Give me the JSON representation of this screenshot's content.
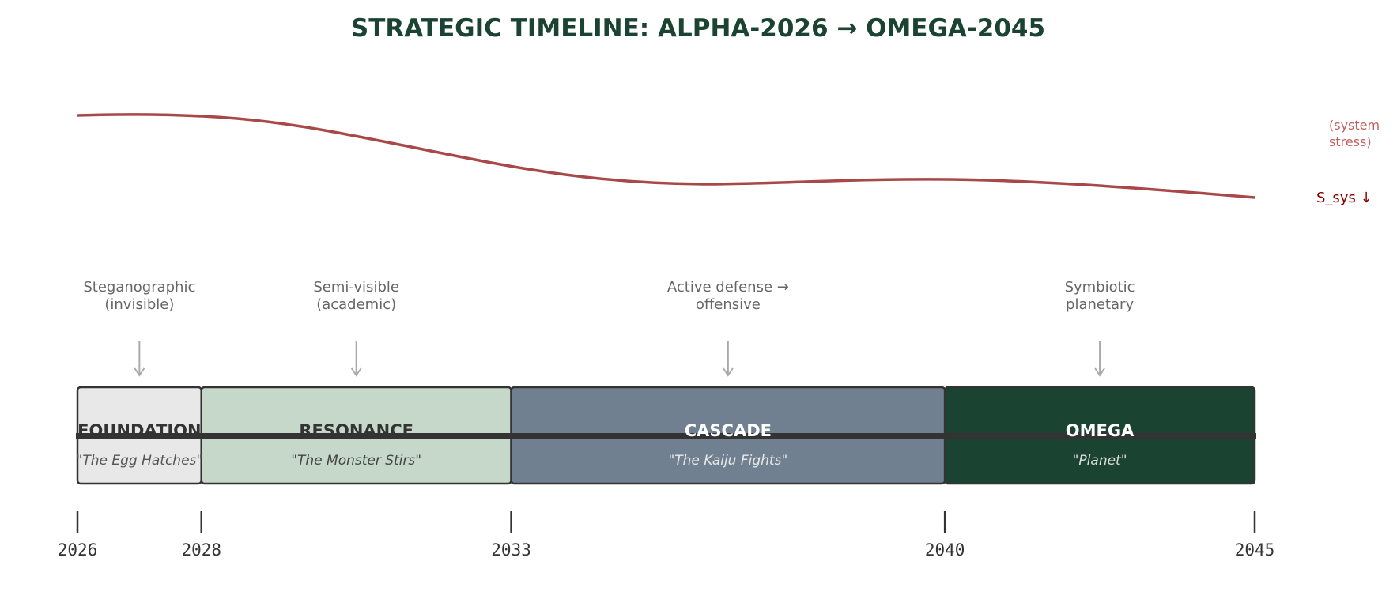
{
  "title": "STRATEGIC TIMELINE: ALPHA-2026 → OMEGA-2045",
  "curve": {
    "label": "S_sys ↓",
    "note_line1": "(system",
    "note_line2": "stress)",
    "color": "#a84848"
  },
  "phases": [
    {
      "name": "FOUNDATION",
      "subtitle": "\"The Egg Hatches\"",
      "start": 2026,
      "end": 2028,
      "fill": "#e8e8e8",
      "text": "#333333",
      "subtext": "#555555"
    },
    {
      "name": "RESONANCE",
      "subtitle": "\"The Monster Stirs\"",
      "start": 2028,
      "end": 2033,
      "fill": "#c6d8ca",
      "text": "#333333",
      "subtext": "#444444"
    },
    {
      "name": "CASCADE",
      "subtitle": "\"The Kaiju Fights\"",
      "start": 2033,
      "end": 2040,
      "fill": "#708090",
      "text": "#ffffff",
      "subtext": "#e8e8e8"
    },
    {
      "name": "OMEGA",
      "subtitle": "\"Planet\"",
      "start": 2040,
      "end": 2045,
      "fill": "#1b4332",
      "text": "#ffffff",
      "subtext": "#dddddd"
    }
  ],
  "annotations": [
    {
      "line1": "Steganographic",
      "line2": "(invisible)"
    },
    {
      "line1": "Semi-visible",
      "line2": "(academic)"
    },
    {
      "line1": "Active defense →",
      "line2": "offensive"
    },
    {
      "line1": "Symbiotic",
      "line2": "planetary"
    }
  ],
  "years": [
    "2026",
    "2028",
    "2033",
    "2040",
    "2045"
  ]
}
